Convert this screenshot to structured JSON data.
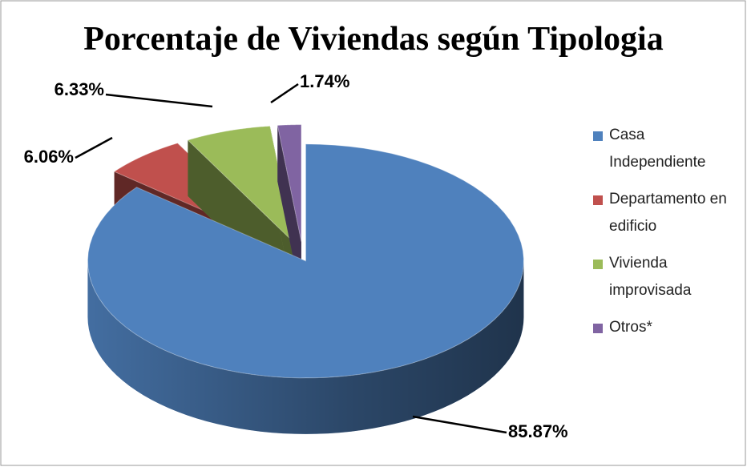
{
  "chart_data": {
    "type": "pie",
    "title": "Porcentaje de Viviendas según Tipologia",
    "categories": [
      "Casa Independiente",
      "Departamento en edificio",
      "Vivienda improvisada",
      "Otros*"
    ],
    "values": [
      85.87,
      6.06,
      6.33,
      1.74
    ],
    "value_labels": [
      "85.87%",
      "6.06%",
      "6.33%",
      "1.74%"
    ],
    "colors": [
      "#4f81bd",
      "#c0504d",
      "#9bbb59",
      "#8064a2"
    ],
    "legend": "right"
  }
}
